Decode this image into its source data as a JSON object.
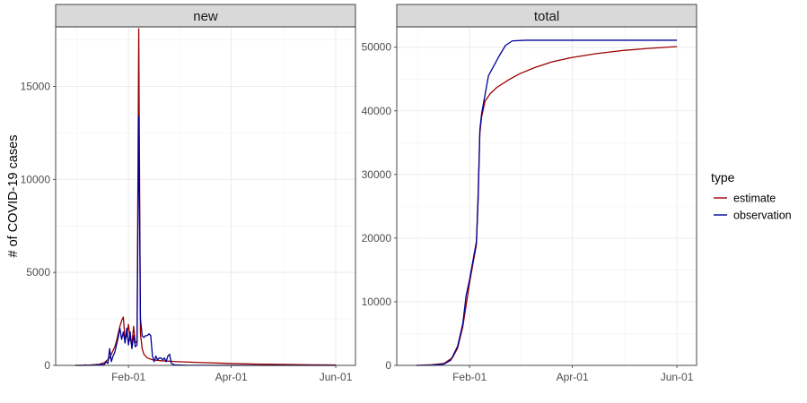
{
  "chart_data": {
    "type": "line",
    "ylabel": "# of COVID-19 cases",
    "xlabel": "",
    "x_ticks": [
      "Feb-01",
      "Apr-01",
      "Jun-01"
    ],
    "legend": {
      "title": "type",
      "placement": "right",
      "entries": [
        {
          "name": "estimate",
          "color": "#990000"
        },
        {
          "name": "observation",
          "color": "#000099"
        }
      ]
    },
    "panels": [
      {
        "title": "new",
        "ylim": [
          0,
          18200
        ],
        "y_ticks": [
          0,
          5000,
          10000,
          15000
        ],
        "series": [
          {
            "name": "estimate",
            "color": "#990000",
            "points": [
              [
                "2020-01-01",
                0
              ],
              [
                "2020-01-08",
                10
              ],
              [
                "2020-01-15",
                60
              ],
              [
                "2020-01-18",
                150
              ],
              [
                "2020-01-21",
                400
              ],
              [
                "2020-01-24",
                1000
              ],
              [
                "2020-01-25",
                1300
              ],
              [
                "2020-01-26",
                1700
              ],
              [
                "2020-01-27",
                2100
              ],
              [
                "2020-01-28",
                2400
              ],
              [
                "2020-01-29",
                2600
              ],
              [
                "2020-01-30",
                1400
              ],
              [
                "2020-01-31",
                1600
              ],
              [
                "2020-02-01",
                2200
              ],
              [
                "2020-02-02",
                1400
              ],
              [
                "2020-02-03",
                1100
              ],
              [
                "2020-02-04",
                2100
              ],
              [
                "2020-02-05",
                1200
              ],
              [
                "2020-02-06",
                1300
              ],
              [
                "2020-02-07",
                18100
              ],
              [
                "2020-02-08",
                1700
              ],
              [
                "2020-02-09",
                900
              ],
              [
                "2020-02-10",
                600
              ],
              [
                "2020-02-12",
                400
              ],
              [
                "2020-02-15",
                300
              ],
              [
                "2020-02-20",
                250
              ],
              [
                "2020-03-01",
                200
              ],
              [
                "2020-03-15",
                150
              ],
              [
                "2020-04-01",
                100
              ],
              [
                "2020-04-15",
                70
              ],
              [
                "2020-05-01",
                50
              ],
              [
                "2020-05-15",
                35
              ],
              [
                "2020-06-01",
                25
              ]
            ]
          },
          {
            "name": "observation",
            "color": "#000099",
            "points": [
              [
                "2020-01-01",
                0
              ],
              [
                "2020-01-06",
                0
              ],
              [
                "2020-01-07",
                30
              ],
              [
                "2020-01-08",
                0
              ],
              [
                "2020-01-15",
                40
              ],
              [
                "2020-01-18",
                60
              ],
              [
                "2020-01-19",
                200
              ],
              [
                "2020-01-20",
                100
              ],
              [
                "2020-01-21",
                900
              ],
              [
                "2020-01-22",
                200
              ],
              [
                "2020-01-23",
                500
              ],
              [
                "2020-01-24",
                700
              ],
              [
                "2020-01-25",
                1100
              ],
              [
                "2020-01-26",
                1500
              ],
              [
                "2020-01-27",
                2000
              ],
              [
                "2020-01-28",
                1400
              ],
              [
                "2020-01-29",
                1800
              ],
              [
                "2020-01-30",
                1200
              ],
              [
                "2020-01-31",
                2000
              ],
              [
                "2020-02-01",
                1100
              ],
              [
                "2020-02-02",
                1800
              ],
              [
                "2020-02-03",
                900
              ],
              [
                "2020-02-04",
                1600
              ],
              [
                "2020-02-05",
                1000
              ],
              [
                "2020-02-06",
                1100
              ],
              [
                "2020-02-07",
                13400
              ],
              [
                "2020-02-08",
                2500
              ],
              [
                "2020-02-09",
                1600
              ],
              [
                "2020-02-10",
                1500
              ],
              [
                "2020-02-11",
                1600
              ],
              [
                "2020-02-12",
                1600
              ],
              [
                "2020-02-13",
                1700
              ],
              [
                "2020-02-14",
                1600
              ],
              [
                "2020-02-15",
                500
              ],
              [
                "2020-02-16",
                200
              ],
              [
                "2020-02-17",
                500
              ],
              [
                "2020-02-18",
                300
              ],
              [
                "2020-02-19",
                400
              ],
              [
                "2020-02-20",
                400
              ],
              [
                "2020-02-21",
                300
              ],
              [
                "2020-02-22",
                400
              ],
              [
                "2020-02-23",
                200
              ],
              [
                "2020-02-24",
                500
              ],
              [
                "2020-02-25",
                600
              ],
              [
                "2020-02-26",
                100
              ],
              [
                "2020-02-28",
                30
              ],
              [
                "2020-03-05",
                10
              ],
              [
                "2020-03-15",
                5
              ],
              [
                "2020-04-01",
                0
              ],
              [
                "2020-06-01",
                0
              ]
            ]
          }
        ]
      },
      {
        "title": "total",
        "ylim": [
          0,
          53200
        ],
        "y_ticks": [
          0,
          10000,
          20000,
          30000,
          40000,
          50000
        ],
        "series": [
          {
            "name": "estimate",
            "color": "#990000",
            "points": [
              [
                "2020-01-01",
                0
              ],
              [
                "2020-01-10",
                100
              ],
              [
                "2020-01-17",
                300
              ],
              [
                "2020-01-22",
                1200
              ],
              [
                "2020-01-25",
                2700
              ],
              [
                "2020-01-28",
                6000
              ],
              [
                "2020-01-30",
                9500
              ],
              [
                "2020-02-01",
                13000
              ],
              [
                "2020-02-03",
                16000
              ],
              [
                "2020-02-05",
                19000
              ],
              [
                "2020-02-06",
                27000
              ],
              [
                "2020-02-07",
                36500
              ],
              [
                "2020-02-08",
                39000
              ],
              [
                "2020-02-10",
                41500
              ],
              [
                "2020-02-13",
                42700
              ],
              [
                "2020-02-17",
                43700
              ],
              [
                "2020-02-24",
                44900
              ],
              [
                "2020-03-01",
                45800
              ],
              [
                "2020-03-10",
                46800
              ],
              [
                "2020-03-20",
                47700
              ],
              [
                "2020-04-01",
                48400
              ],
              [
                "2020-04-15",
                49000
              ],
              [
                "2020-05-01",
                49500
              ],
              [
                "2020-05-15",
                49800
              ],
              [
                "2020-06-01",
                50100
              ]
            ]
          },
          {
            "name": "observation",
            "color": "#000099",
            "points": [
              [
                "2020-01-01",
                0
              ],
              [
                "2020-01-10",
                50
              ],
              [
                "2020-01-17",
                200
              ],
              [
                "2020-01-21",
                800
              ],
              [
                "2020-01-25",
                3000
              ],
              [
                "2020-01-28",
                6500
              ],
              [
                "2020-01-30",
                11000
              ],
              [
                "2020-02-01",
                13500
              ],
              [
                "2020-02-03",
                16500
              ],
              [
                "2020-02-05",
                19500
              ],
              [
                "2020-02-06",
                26000
              ],
              [
                "2020-02-07",
                37000
              ],
              [
                "2020-02-08",
                39500
              ],
              [
                "2020-02-10",
                42500
              ],
              [
                "2020-02-12",
                45500
              ],
              [
                "2020-02-15",
                47000
              ],
              [
                "2020-02-18",
                48500
              ],
              [
                "2020-02-22",
                50300
              ],
              [
                "2020-02-26",
                51000
              ],
              [
                "2020-03-05",
                51100
              ],
              [
                "2020-06-01",
                51100
              ]
            ]
          }
        ]
      }
    ]
  }
}
